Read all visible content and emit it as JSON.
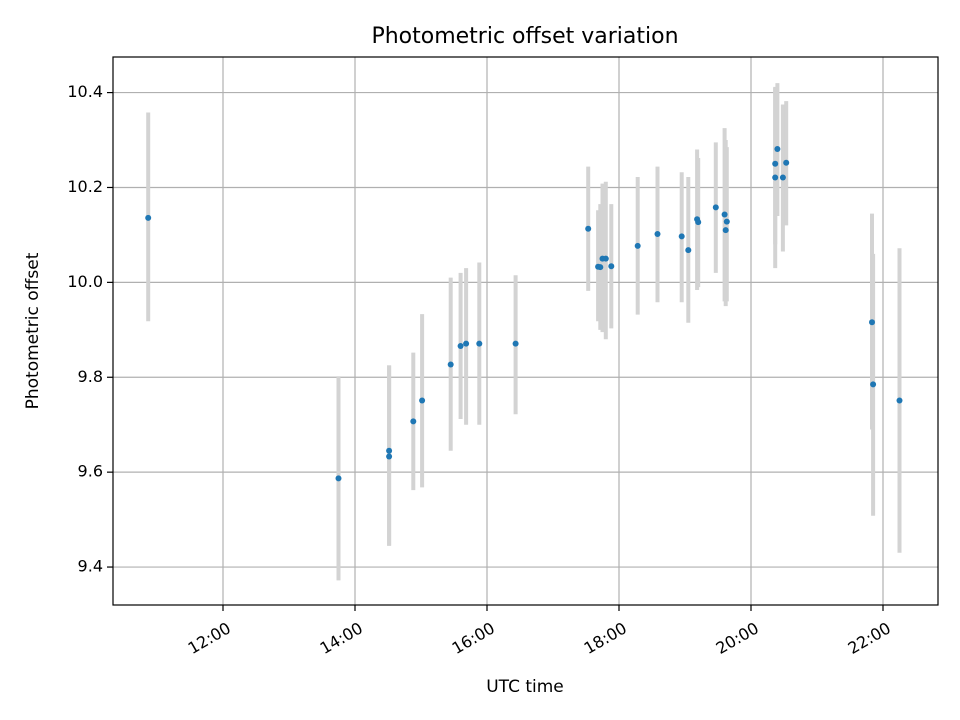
{
  "chart_data": {
    "type": "scatter",
    "title": "Photometric offset variation",
    "xlabel": "UTC time",
    "ylabel": "Photometric offset",
    "xlim": [
      "10:20",
      "22:50"
    ],
    "ylim": [
      9.32,
      10.475
    ],
    "x_ticks": [
      "12:00",
      "14:00",
      "16:00",
      "18:00",
      "20:00",
      "22:00"
    ],
    "y_ticks": [
      9.4,
      9.6,
      9.8,
      10.0,
      10.2,
      10.4
    ],
    "y_tick_labels": [
      "9.4",
      "9.6",
      "9.8",
      "10.0",
      "10.2",
      "10.4"
    ],
    "grid": true,
    "marker_color": "#1f77b4",
    "errorbar_color": "#d3d3d3",
    "points": [
      {
        "t": "10:52",
        "y": 10.136,
        "lo": 9.918,
        "hi": 10.358
      },
      {
        "t": "13:45",
        "y": 9.587,
        "lo": 9.372,
        "hi": 9.802
      },
      {
        "t": "14:31",
        "y": 9.645,
        "lo": 9.445,
        "hi": 9.825
      },
      {
        "t": "14:31",
        "y": 9.633,
        "lo": 9.445,
        "hi": 9.825
      },
      {
        "t": "14:53",
        "y": 9.707,
        "lo": 9.562,
        "hi": 9.852
      },
      {
        "t": "15:01",
        "y": 9.751,
        "lo": 9.568,
        "hi": 9.933
      },
      {
        "t": "15:27",
        "y": 9.827,
        "lo": 9.645,
        "hi": 10.01
      },
      {
        "t": "15:36",
        "y": 9.866,
        "lo": 9.712,
        "hi": 10.02
      },
      {
        "t": "15:41",
        "y": 9.871,
        "lo": 9.7,
        "hi": 10.03
      },
      {
        "t": "15:53",
        "y": 9.871,
        "lo": 9.7,
        "hi": 10.042
      },
      {
        "t": "16:26",
        "y": 9.871,
        "lo": 9.722,
        "hi": 10.015
      },
      {
        "t": "17:32",
        "y": 10.113,
        "lo": 9.982,
        "hi": 10.244
      },
      {
        "t": "17:41",
        "y": 10.033,
        "lo": 9.918,
        "hi": 10.152
      },
      {
        "t": "17:43",
        "y": 10.032,
        "lo": 9.9,
        "hi": 10.165
      },
      {
        "t": "17:45",
        "y": 10.05,
        "lo": 9.895,
        "hi": 10.208
      },
      {
        "t": "17:48",
        "y": 10.05,
        "lo": 9.88,
        "hi": 10.212
      },
      {
        "t": "17:53",
        "y": 10.034,
        "lo": 9.903,
        "hi": 10.165
      },
      {
        "t": "18:17",
        "y": 10.077,
        "lo": 9.932,
        "hi": 10.222
      },
      {
        "t": "18:35",
        "y": 10.102,
        "lo": 9.958,
        "hi": 10.244
      },
      {
        "t": "18:57",
        "y": 10.097,
        "lo": 9.958,
        "hi": 10.232
      },
      {
        "t": "19:03",
        "y": 10.068,
        "lo": 9.915,
        "hi": 10.222
      },
      {
        "t": "19:11",
        "y": 10.133,
        "lo": 9.984,
        "hi": 10.28
      },
      {
        "t": "19:12",
        "y": 10.127,
        "lo": 9.99,
        "hi": 10.262
      },
      {
        "t": "19:28",
        "y": 10.158,
        "lo": 10.02,
        "hi": 10.295
      },
      {
        "t": "19:36",
        "y": 10.143,
        "lo": 9.96,
        "hi": 10.325
      },
      {
        "t": "19:37",
        "y": 10.11,
        "lo": 9.95,
        "hi": 10.3
      },
      {
        "t": "19:38",
        "y": 10.128,
        "lo": 9.96,
        "hi": 10.285
      },
      {
        "t": "20:22",
        "y": 10.25,
        "lo": 10.08,
        "hi": 10.412
      },
      {
        "t": "20:22",
        "y": 10.221,
        "lo": 10.03,
        "hi": 10.41
      },
      {
        "t": "20:24",
        "y": 10.281,
        "lo": 10.14,
        "hi": 10.42
      },
      {
        "t": "20:29",
        "y": 10.221,
        "lo": 10.065,
        "hi": 10.375
      },
      {
        "t": "20:32",
        "y": 10.252,
        "lo": 10.12,
        "hi": 10.382
      },
      {
        "t": "21:50",
        "y": 9.916,
        "lo": 9.69,
        "hi": 10.145
      },
      {
        "t": "21:51",
        "y": 9.785,
        "lo": 9.508,
        "hi": 10.06
      },
      {
        "t": "22:15",
        "y": 9.751,
        "lo": 9.43,
        "hi": 10.072
      }
    ]
  }
}
